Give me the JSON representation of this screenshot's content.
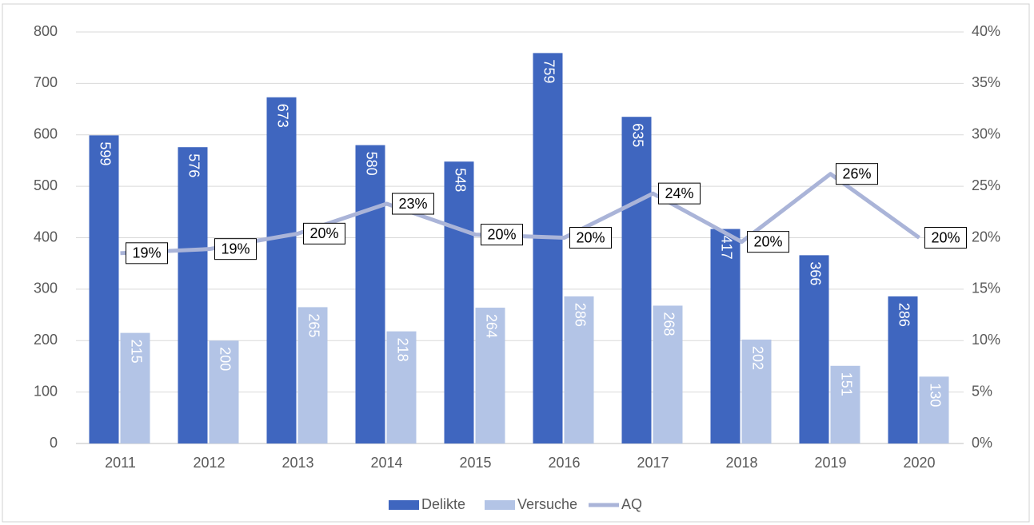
{
  "chart_data": {
    "type": "bar",
    "categories": [
      "2011",
      "2012",
      "2013",
      "2014",
      "2015",
      "2016",
      "2017",
      "2018",
      "2019",
      "2020"
    ],
    "series": [
      {
        "name": "Delikte",
        "color": "#3f66bf",
        "values": [
          599,
          576,
          673,
          580,
          548,
          759,
          635,
          417,
          366,
          286
        ]
      },
      {
        "name": "Versuche",
        "color": "#b3c4e6",
        "values": [
          215,
          200,
          265,
          218,
          264,
          286,
          268,
          202,
          151,
          130
        ]
      },
      {
        "name": "AQ",
        "type": "line",
        "axis": "y2",
        "color": "#aab4d8",
        "values": [
          18.5,
          18.9,
          20.4,
          23.3,
          20.3,
          20.0,
          24.3,
          19.6,
          26.2,
          20.0
        ],
        "value_labels": [
          "19%",
          "19%",
          "20%",
          "23%",
          "20%",
          "20%",
          "24%",
          "20%",
          "26%",
          "20%"
        ]
      }
    ],
    "ylim": [
      0,
      800
    ],
    "yticks": [
      0,
      100,
      200,
      300,
      400,
      500,
      600,
      700,
      800
    ],
    "y2lim": [
      0,
      40
    ],
    "y2ticks": [
      {
        "value": 0,
        "label": "0%"
      },
      {
        "value": 5,
        "label": "5%"
      },
      {
        "value": 10,
        "label": "10%"
      },
      {
        "value": 15,
        "label": "15%"
      },
      {
        "value": 20,
        "label": "20%"
      },
      {
        "value": 25,
        "label": "25%"
      },
      {
        "value": 30,
        "label": "30%"
      },
      {
        "value": 35,
        "label": "35%"
      },
      {
        "value": 40,
        "label": "40%"
      }
    ],
    "grid": true,
    "legend": "bottom"
  }
}
